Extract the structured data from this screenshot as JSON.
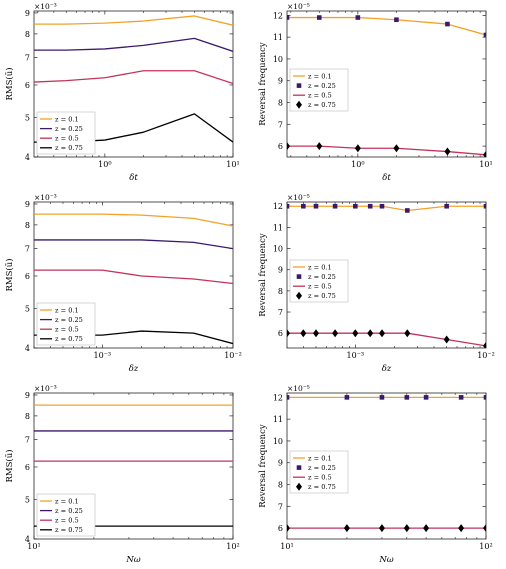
{
  "colors": {
    "z_0_1": "#f2a22a",
    "z_0_25": "#3b1a6b",
    "z_0_5": "#c2335b",
    "z_0_75": "#000000",
    "axes": "#262626",
    "grid_tick": "#262626"
  },
  "legend_labels": [
    "z = 0.1",
    "z = 0.25",
    "z = 0.5",
    "z = 0.75"
  ],
  "chart_data": [
    {
      "id": "rms-vs-deltat",
      "type": "line",
      "xlabel": "δt",
      "ylabel": "RMS(ū)",
      "exponent_label": "×10⁻³",
      "xscale": "log",
      "yscale": "log",
      "xlim": [
        0.28,
        10
      ],
      "ylim": [
        4.0,
        9.1
      ],
      "xticks": [
        1,
        10
      ],
      "xtick_labels": [
        "10⁰",
        "10¹"
      ],
      "yticks": [
        4,
        5,
        6,
        7,
        8,
        9
      ],
      "ytick_labels": [
        "4",
        "5",
        "6",
        "7",
        "8",
        "9"
      ],
      "legend_position": "lower-left",
      "series": [
        {
          "name": "z = 0.1",
          "marker": "none",
          "x": [
            0.28,
            0.5,
            1,
            2,
            5,
            10
          ],
          "y": [
            8.45,
            8.45,
            8.5,
            8.6,
            8.85,
            8.4
          ]
        },
        {
          "name": "z = 0.25",
          "marker": "none",
          "x": [
            0.28,
            0.5,
            1,
            2,
            5,
            10
          ],
          "y": [
            7.3,
            7.3,
            7.35,
            7.5,
            7.8,
            7.25
          ]
        },
        {
          "name": "z = 0.5",
          "marker": "none",
          "x": [
            0.28,
            0.5,
            1,
            2,
            5,
            10
          ],
          "y": [
            6.1,
            6.15,
            6.25,
            6.5,
            6.5,
            6.05
          ]
        },
        {
          "name": "z = 0.75",
          "marker": "none",
          "x": [
            0.28,
            0.5,
            1,
            2,
            5,
            10
          ],
          "y": [
            4.35,
            4.35,
            4.4,
            4.6,
            5.1,
            4.35
          ]
        }
      ]
    },
    {
      "id": "freq-vs-deltat",
      "type": "line",
      "xlabel": "δt",
      "ylabel": "Reversal frequency",
      "exponent_label": "×10⁻⁵",
      "xscale": "log",
      "yscale": "linear",
      "xlim": [
        0.28,
        10
      ],
      "ylim": [
        5.5,
        12.2
      ],
      "xticks": [
        1,
        10
      ],
      "xtick_labels": [
        "10⁰",
        "10¹"
      ],
      "yticks": [
        6,
        7,
        8,
        9,
        10,
        11,
        12
      ],
      "ytick_labels": [
        "6",
        "7",
        "8",
        "9",
        "10",
        "11",
        "12"
      ],
      "legend_position": "center-left",
      "series": [
        {
          "name": "z = 0.1",
          "marker": "none",
          "x": [
            0.28,
            0.5,
            1,
            2,
            5,
            10
          ],
          "y": [
            11.9,
            11.9,
            11.9,
            11.8,
            11.6,
            11.1
          ]
        },
        {
          "name": "z = 0.25",
          "marker": "square",
          "x": [
            0.28,
            0.5,
            1,
            2,
            5,
            10
          ],
          "y": [
            11.9,
            11.9,
            11.9,
            11.8,
            11.6,
            11.1
          ]
        },
        {
          "name": "z = 0.5",
          "marker": "none",
          "x": [
            0.28,
            0.5,
            1,
            2,
            5,
            10
          ],
          "y": [
            6.0,
            6.0,
            5.9,
            5.9,
            5.75,
            5.6
          ]
        },
        {
          "name": "z = 0.75",
          "marker": "diamond",
          "x": [
            0.28,
            0.5,
            1,
            2,
            5,
            10
          ],
          "y": [
            6.0,
            6.0,
            5.9,
            5.9,
            5.75,
            5.6
          ]
        }
      ]
    },
    {
      "id": "rms-vs-deltaz",
      "type": "line",
      "xlabel": "δz",
      "ylabel": "RMS(ū)",
      "exponent_label": "×10⁻³",
      "xscale": "log",
      "yscale": "log",
      "xlim": [
        0.0003,
        0.01
      ],
      "ylim": [
        4.0,
        9.1
      ],
      "xticks": [
        0.001,
        0.01
      ],
      "xtick_labels": [
        "10⁻³",
        "10⁻²"
      ],
      "yticks": [
        4,
        5,
        6,
        7,
        8,
        9
      ],
      "ytick_labels": [
        "4",
        "5",
        "6",
        "7",
        "8",
        "9"
      ],
      "legend_position": "lower-left",
      "series": [
        {
          "name": "z = 0.1",
          "marker": "none",
          "x": [
            0.0003,
            0.001,
            0.002,
            0.005,
            0.01
          ],
          "y": [
            8.5,
            8.5,
            8.45,
            8.3,
            7.95
          ]
        },
        {
          "name": "z = 0.25",
          "marker": "none",
          "x": [
            0.0003,
            0.001,
            0.002,
            0.005,
            0.01
          ],
          "y": [
            7.35,
            7.35,
            7.35,
            7.25,
            7.0
          ]
        },
        {
          "name": "z = 0.5",
          "marker": "none",
          "x": [
            0.0003,
            0.001,
            0.002,
            0.005,
            0.01
          ],
          "y": [
            6.2,
            6.2,
            6.0,
            5.9,
            5.75
          ]
        },
        {
          "name": "z = 0.75",
          "marker": "none",
          "x": [
            0.0003,
            0.001,
            0.002,
            0.005,
            0.01
          ],
          "y": [
            4.3,
            4.3,
            4.4,
            4.35,
            4.1
          ]
        }
      ]
    },
    {
      "id": "freq-vs-deltaz",
      "type": "line",
      "xlabel": "δz",
      "ylabel": "Reversal frequency",
      "exponent_label": "×10⁻⁵",
      "xscale": "log",
      "yscale": "linear",
      "xlim": [
        0.0003,
        0.01
      ],
      "ylim": [
        5.3,
        12.2
      ],
      "xticks": [
        0.001,
        0.01
      ],
      "xtick_labels": [
        "10⁻³",
        "10⁻²"
      ],
      "yticks": [
        6,
        7,
        8,
        9,
        10,
        11,
        12
      ],
      "ytick_labels": [
        "6",
        "7",
        "8",
        "9",
        "10",
        "11",
        "12"
      ],
      "legend_position": "center-left",
      "series": [
        {
          "name": "z = 0.1",
          "marker": "none",
          "x": [
            0.0003,
            0.0004,
            0.0005,
            0.0007,
            0.001,
            0.0013,
            0.0016,
            0.0025,
            0.005,
            0.01
          ],
          "y": [
            12,
            12,
            12,
            12,
            12,
            12,
            12,
            11.8,
            12,
            12
          ]
        },
        {
          "name": "z = 0.25",
          "marker": "square",
          "x": [
            0.0003,
            0.0004,
            0.0005,
            0.0007,
            0.001,
            0.0013,
            0.0016,
            0.0025,
            0.005,
            0.01
          ],
          "y": [
            12,
            12,
            12,
            12,
            12,
            12,
            12,
            11.8,
            12,
            12
          ]
        },
        {
          "name": "z = 0.5",
          "marker": "none",
          "x": [
            0.0003,
            0.0004,
            0.0005,
            0.0007,
            0.001,
            0.0013,
            0.0016,
            0.0025,
            0.005,
            0.01
          ],
          "y": [
            6,
            6,
            6,
            6,
            6,
            6,
            6,
            6,
            5.7,
            5.4
          ]
        },
        {
          "name": "z = 0.75",
          "marker": "diamond",
          "x": [
            0.0003,
            0.0004,
            0.0005,
            0.0007,
            0.001,
            0.0013,
            0.0016,
            0.0025,
            0.005,
            0.01
          ],
          "y": [
            6,
            6,
            6,
            6,
            6,
            6,
            6,
            6,
            5.7,
            5.4
          ]
        }
      ]
    },
    {
      "id": "rms-vs-nomega",
      "type": "line",
      "xlabel": "Nω",
      "ylabel": "RMS(ū)",
      "exponent_label": "×10⁻³",
      "xscale": "log",
      "yscale": "log",
      "xlim": [
        10,
        100
      ],
      "ylim": [
        4.0,
        9.1
      ],
      "xticks": [
        10,
        100
      ],
      "xtick_labels": [
        "10¹",
        "10²"
      ],
      "yticks": [
        4,
        5,
        6,
        7,
        8,
        9
      ],
      "ytick_labels": [
        "4",
        "5",
        "6",
        "7",
        "8",
        "9"
      ],
      "legend_position": "lower-left",
      "series": [
        {
          "name": "z = 0.1",
          "marker": "none",
          "x": [
            10,
            100
          ],
          "y": [
            8.5,
            8.5
          ]
        },
        {
          "name": "z = 0.25",
          "marker": "none",
          "x": [
            10,
            100
          ],
          "y": [
            7.35,
            7.35
          ]
        },
        {
          "name": "z = 0.5",
          "marker": "none",
          "x": [
            10,
            100
          ],
          "y": [
            6.2,
            6.2
          ]
        },
        {
          "name": "z = 0.75",
          "marker": "none",
          "x": [
            10,
            100
          ],
          "y": [
            4.3,
            4.3
          ]
        }
      ]
    },
    {
      "id": "freq-vs-nomega",
      "type": "line",
      "xlabel": "Nω",
      "ylabel": "Reversal frequency",
      "exponent_label": "×10⁻⁵",
      "xscale": "log",
      "yscale": "linear",
      "xlim": [
        10,
        100
      ],
      "ylim": [
        5.5,
        12.2
      ],
      "xticks": [
        10,
        100
      ],
      "xtick_labels": [
        "10¹",
        "10²"
      ],
      "yticks": [
        6,
        7,
        8,
        9,
        10,
        11,
        12
      ],
      "ytick_labels": [
        "6",
        "7",
        "8",
        "9",
        "10",
        "11",
        "12"
      ],
      "legend_position": "center-left",
      "series": [
        {
          "name": "z = 0.1",
          "marker": "none",
          "x": [
            10,
            20,
            30,
            40,
            50,
            75,
            100
          ],
          "y": [
            12,
            12,
            12,
            12,
            12,
            12,
            12
          ]
        },
        {
          "name": "z = 0.25",
          "marker": "square",
          "x": [
            10,
            20,
            30,
            40,
            50,
            75,
            100
          ],
          "y": [
            12,
            12,
            12,
            12,
            12,
            12,
            12
          ]
        },
        {
          "name": "z = 0.5",
          "marker": "none",
          "x": [
            10,
            20,
            30,
            40,
            50,
            75,
            100
          ],
          "y": [
            6,
            6,
            6,
            6,
            6,
            6,
            6
          ]
        },
        {
          "name": "z = 0.75",
          "marker": "diamond",
          "x": [
            10,
            20,
            30,
            40,
            50,
            75,
            100
          ],
          "y": [
            6,
            6,
            6,
            6,
            6,
            6,
            6
          ]
        }
      ]
    }
  ]
}
